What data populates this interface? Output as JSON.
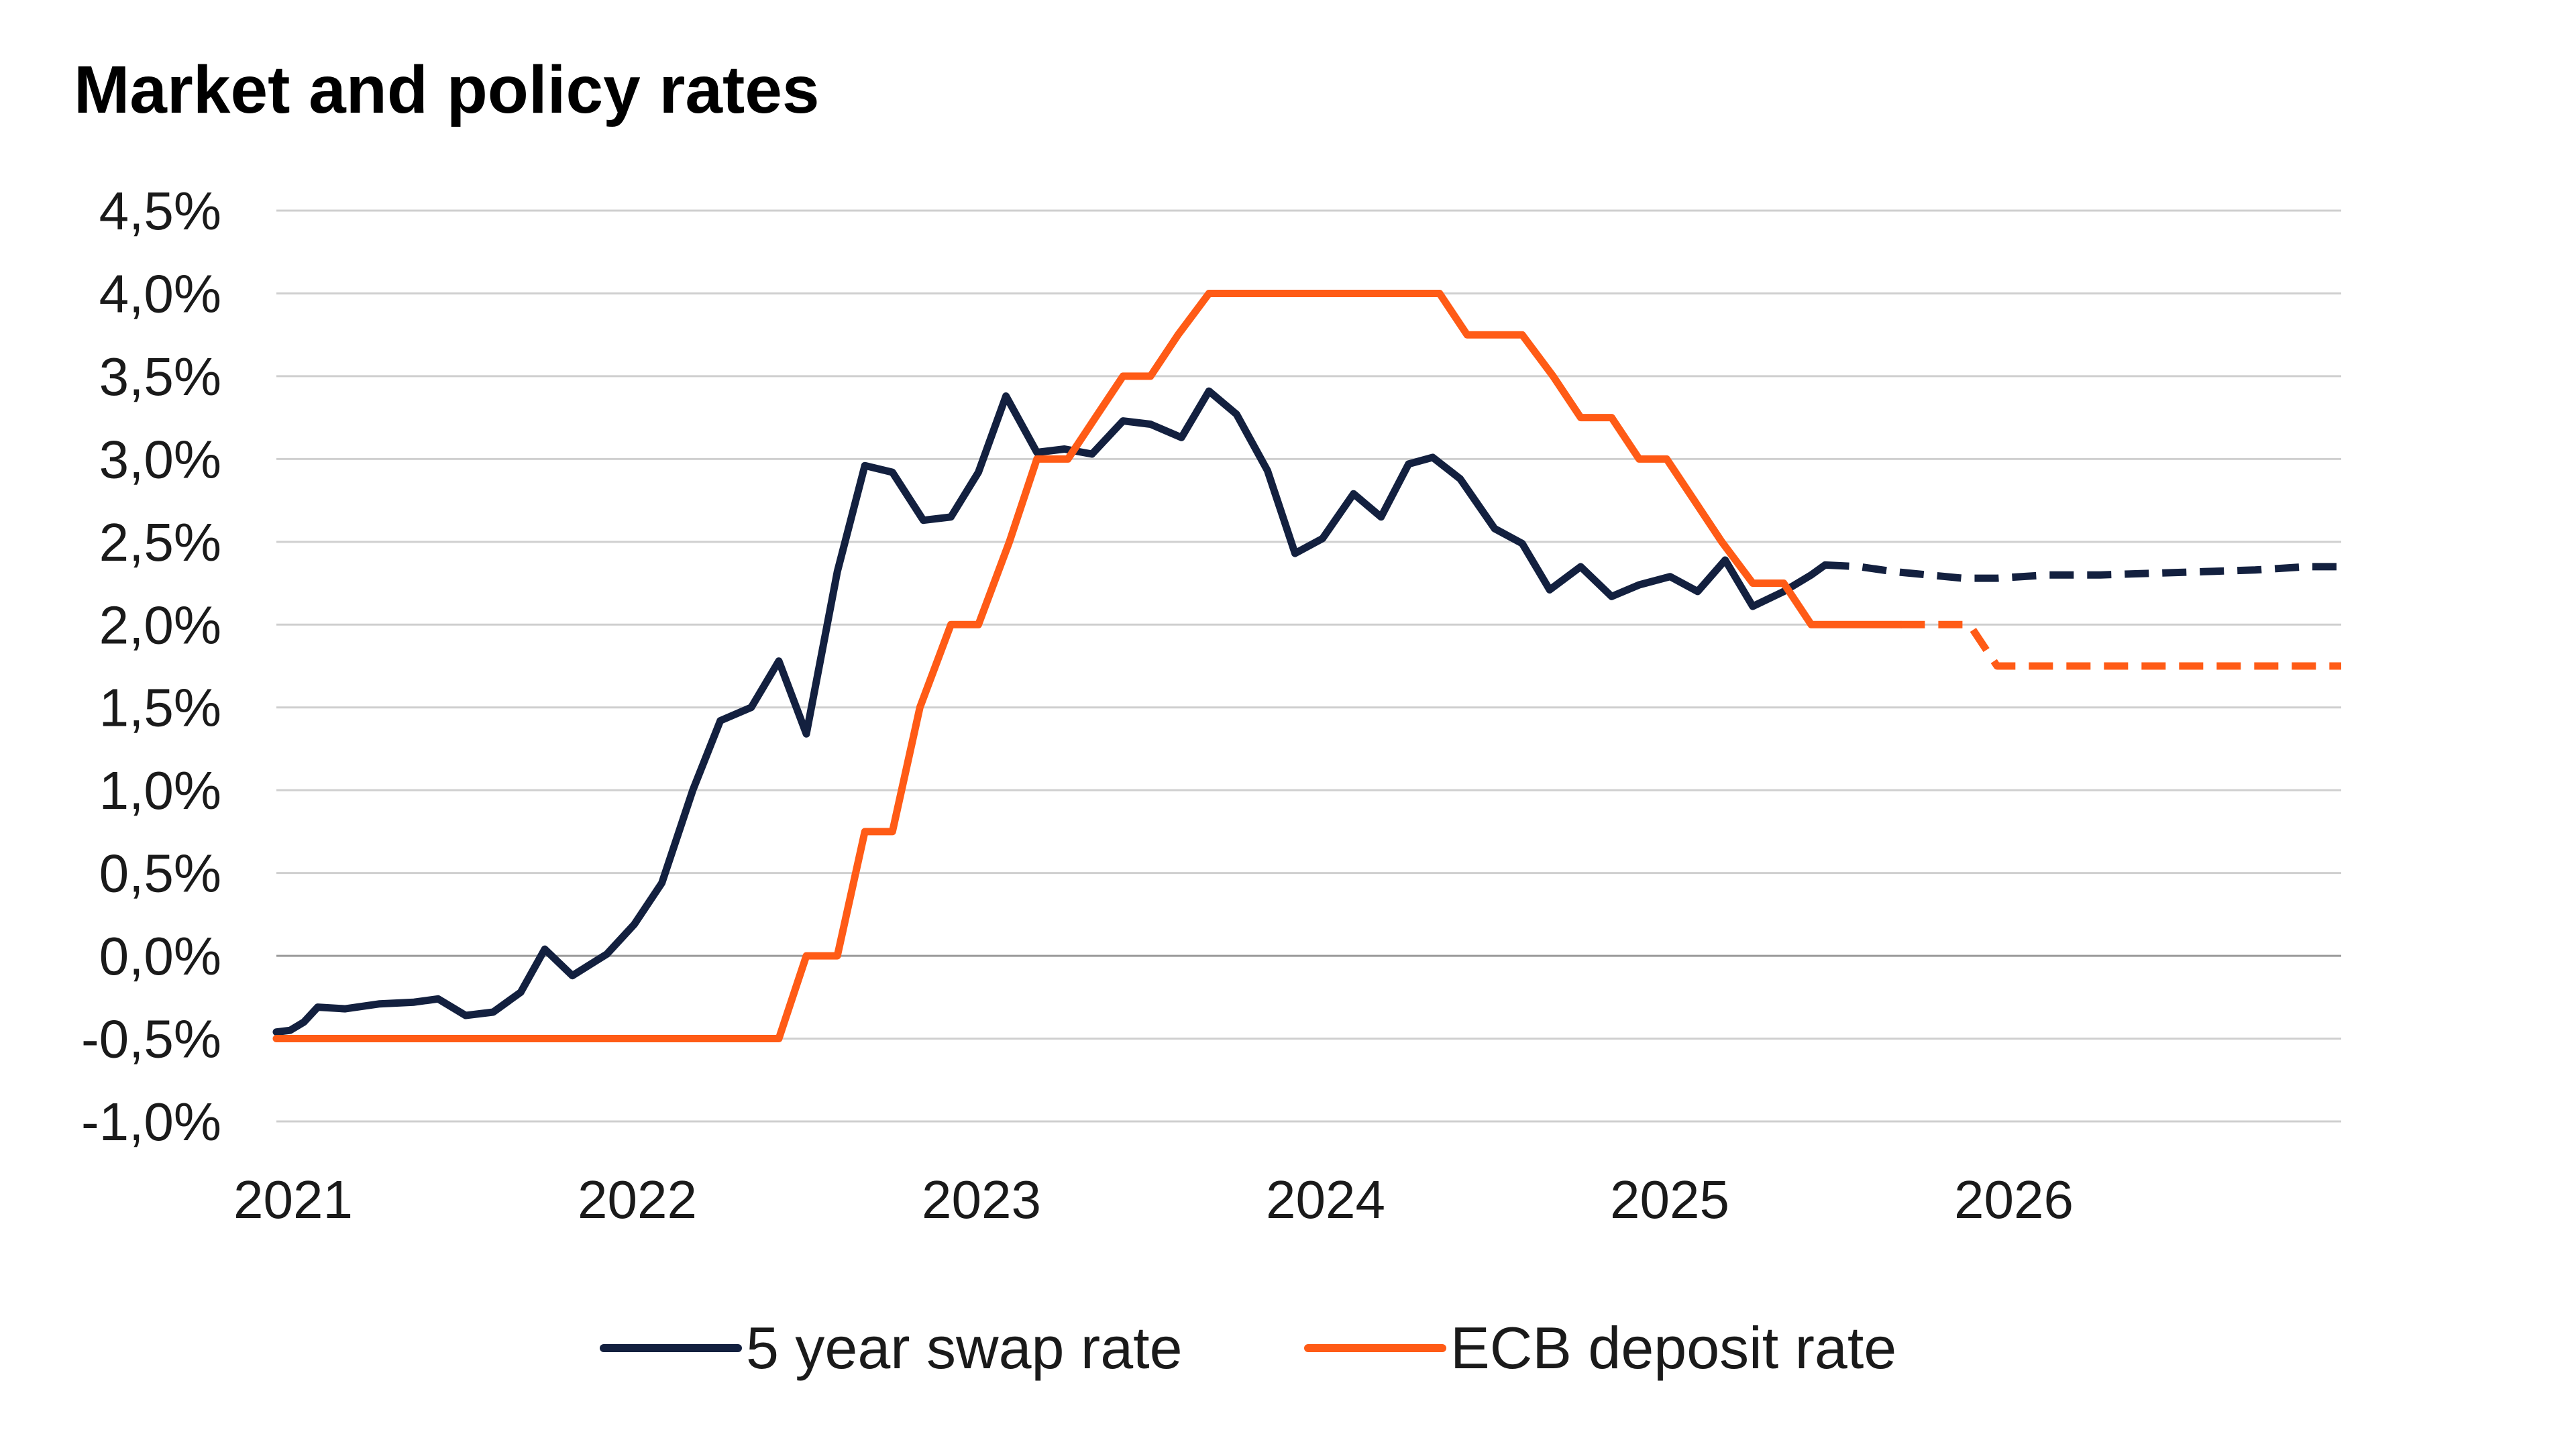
{
  "chart_data": {
    "type": "line",
    "title": "Market and policy rates",
    "xlabel": "",
    "ylabel": "",
    "x_ticks": [
      "2021",
      "2022",
      "2023",
      "2024",
      "2025",
      "2026"
    ],
    "y_ticks": [
      "4,5%",
      "4,0%",
      "3,5%",
      "3,0%",
      "2,5%",
      "2,0%",
      "1,5%",
      "1,0%",
      "0,5%",
      "0,0%",
      "-0,5%",
      "-1,0%"
    ],
    "ylim": [
      -1.0,
      4.5
    ],
    "xlim": [
      2021.0,
      2027.0
    ],
    "grid": true,
    "legend_position": "bottom",
    "series": [
      {
        "name": "5 year swap rate",
        "color": "#13203f",
        "style": "solid-then-dashed",
        "forecast_from": 2025.5,
        "points": [
          [
            2021.0,
            -0.46
          ],
          [
            2021.04,
            -0.45
          ],
          [
            2021.08,
            -0.4
          ],
          [
            2021.12,
            -0.31
          ],
          [
            2021.2,
            -0.32
          ],
          [
            2021.3,
            -0.29
          ],
          [
            2021.4,
            -0.28
          ],
          [
            2021.47,
            -0.26
          ],
          [
            2021.55,
            -0.36
          ],
          [
            2021.63,
            -0.34
          ],
          [
            2021.71,
            -0.22
          ],
          [
            2021.78,
            0.04
          ],
          [
            2021.86,
            -0.12
          ],
          [
            2021.96,
            0.01
          ],
          [
            2022.04,
            0.19
          ],
          [
            2022.12,
            0.44
          ],
          [
            2022.21,
            1.0
          ],
          [
            2022.29,
            1.42
          ],
          [
            2022.38,
            1.5
          ],
          [
            2022.46,
            1.78
          ],
          [
            2022.54,
            1.34
          ],
          [
            2022.63,
            2.32
          ],
          [
            2022.71,
            2.96
          ],
          [
            2022.79,
            2.92
          ],
          [
            2022.88,
            2.63
          ],
          [
            2022.96,
            2.65
          ],
          [
            2023.04,
            2.92
          ],
          [
            2023.12,
            3.38
          ],
          [
            2023.21,
            3.04
          ],
          [
            2023.29,
            3.06
          ],
          [
            2023.37,
            3.03
          ],
          [
            2023.46,
            3.23
          ],
          [
            2023.54,
            3.21
          ],
          [
            2023.63,
            3.13
          ],
          [
            2023.71,
            3.41
          ],
          [
            2023.79,
            3.27
          ],
          [
            2023.88,
            2.93
          ],
          [
            2023.96,
            2.43
          ],
          [
            2024.04,
            2.52
          ],
          [
            2024.13,
            2.79
          ],
          [
            2024.21,
            2.65
          ],
          [
            2024.29,
            2.97
          ],
          [
            2024.36,
            3.01
          ],
          [
            2024.44,
            2.88
          ],
          [
            2024.54,
            2.58
          ],
          [
            2024.62,
            2.49
          ],
          [
            2024.7,
            2.21
          ],
          [
            2024.79,
            2.35
          ],
          [
            2024.88,
            2.17
          ],
          [
            2024.96,
            2.24
          ],
          [
            2025.05,
            2.29
          ],
          [
            2025.13,
            2.2
          ],
          [
            2025.21,
            2.39
          ],
          [
            2025.29,
            2.11
          ],
          [
            2025.38,
            2.2
          ],
          [
            2025.46,
            2.3
          ],
          [
            2025.5,
            2.36
          ],
          [
            2025.6,
            2.35
          ],
          [
            2025.7,
            2.32
          ],
          [
            2025.8,
            2.3
          ],
          [
            2025.9,
            2.28
          ],
          [
            2026.0,
            2.28
          ],
          [
            2026.15,
            2.3
          ],
          [
            2026.3,
            2.3
          ],
          [
            2026.45,
            2.31
          ],
          [
            2026.6,
            2.32
          ],
          [
            2026.75,
            2.33
          ],
          [
            2026.9,
            2.35
          ],
          [
            2027.0,
            2.35
          ]
        ]
      },
      {
        "name": "ECB deposit rate",
        "color": "#ff5b16",
        "style": "solid-then-dashed",
        "forecast_from": 2025.72,
        "points": [
          [
            2021.0,
            -0.5
          ],
          [
            2022.46,
            -0.5
          ],
          [
            2022.54,
            0.0
          ],
          [
            2022.63,
            0.0
          ],
          [
            2022.71,
            0.75
          ],
          [
            2022.79,
            0.75
          ],
          [
            2022.87,
            1.5
          ],
          [
            2022.96,
            2.0
          ],
          [
            2023.04,
            2.0
          ],
          [
            2023.13,
            2.5
          ],
          [
            2023.21,
            3.0
          ],
          [
            2023.3,
            3.0
          ],
          [
            2023.38,
            3.25
          ],
          [
            2023.46,
            3.5
          ],
          [
            2023.54,
            3.5
          ],
          [
            2023.62,
            3.75
          ],
          [
            2023.71,
            4.0
          ],
          [
            2024.38,
            4.0
          ],
          [
            2024.46,
            3.75
          ],
          [
            2024.62,
            3.75
          ],
          [
            2024.71,
            3.5
          ],
          [
            2024.79,
            3.25
          ],
          [
            2024.88,
            3.25
          ],
          [
            2024.96,
            3.0
          ],
          [
            2025.04,
            3.0
          ],
          [
            2025.12,
            2.75
          ],
          [
            2025.2,
            2.5
          ],
          [
            2025.29,
            2.25
          ],
          [
            2025.38,
            2.25
          ],
          [
            2025.46,
            2.0
          ],
          [
            2025.72,
            2.0
          ],
          [
            2025.92,
            2.0
          ],
          [
            2026.0,
            1.75
          ],
          [
            2027.0,
            1.75
          ]
        ]
      }
    ]
  }
}
